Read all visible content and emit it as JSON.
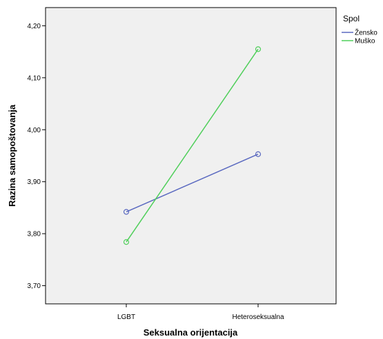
{
  "chart_data": {
    "type": "line",
    "xlabel": "Seksualna orijentacija",
    "ylabel": "Razina samopoštovanja",
    "categories": [
      "LGBT",
      "Heteroseksualna"
    ],
    "yticks": [
      "3,70",
      "3,80",
      "3,90",
      "4,00",
      "4,10",
      "4,20"
    ],
    "ytick_values": [
      3.7,
      3.8,
      3.9,
      4.0,
      4.1,
      4.2
    ],
    "ylim": [
      3.665,
      4.235
    ],
    "grid": false,
    "legend": {
      "title": "Spol",
      "placement": "right"
    },
    "series": [
      {
        "name": "Žensko",
        "color": "#5a69c0",
        "values": [
          3.842,
          3.953
        ]
      },
      {
        "name": "Muško",
        "color": "#4fcf5a",
        "values": [
          3.784,
          4.155
        ]
      }
    ]
  }
}
